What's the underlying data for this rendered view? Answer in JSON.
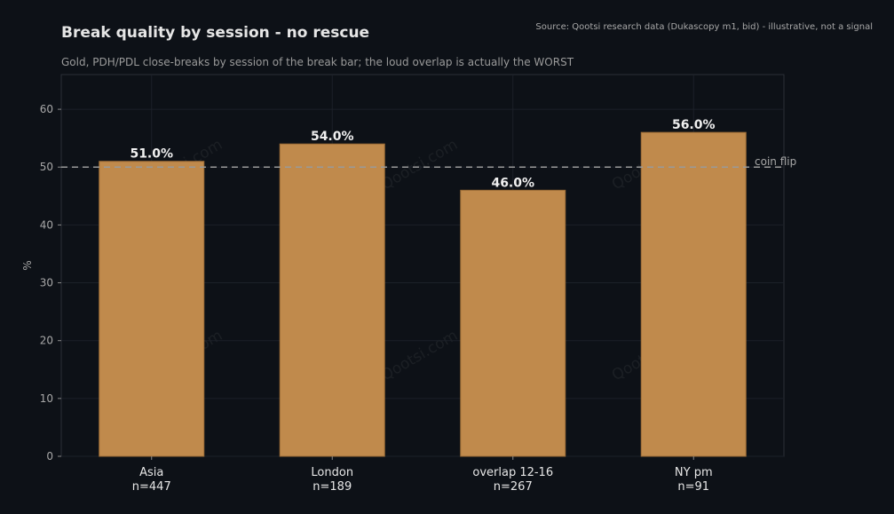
{
  "chart_data": {
    "type": "bar",
    "title": "Break quality by session - no rescue",
    "subtitle": "Gold, PDH/PDL close-breaks by session of the break bar; the loud overlap is actually the WORST",
    "source": "Source: Qootsi research data (Dukascopy m1, bid) - illustrative, not a signal",
    "categories": [
      {
        "name": "Asia",
        "n": "n=447"
      },
      {
        "name": "London",
        "n": "n=189"
      },
      {
        "name": "overlap 12-16",
        "n": "n=267"
      },
      {
        "name": "NY pm",
        "n": "n=91"
      }
    ],
    "values": [
      51.0,
      54.0,
      46.0,
      56.0
    ],
    "value_labels": [
      "51.0%",
      "54.0%",
      "46.0%",
      "56.0%"
    ],
    "ylabel": "%",
    "xlabel": "",
    "ylim": [
      0,
      66
    ],
    "yticks": [
      0,
      10,
      20,
      30,
      40,
      50,
      60
    ],
    "grid": true,
    "reference_line": {
      "value": 50,
      "label": "coin flip"
    },
    "watermark": "Qootsi.com",
    "colors": {
      "background": "#0d1117",
      "bar": "#c08a4c",
      "bar_edge": "#9a6b36",
      "grid": "#1c2129",
      "reference": "#9a9a9a"
    }
  }
}
